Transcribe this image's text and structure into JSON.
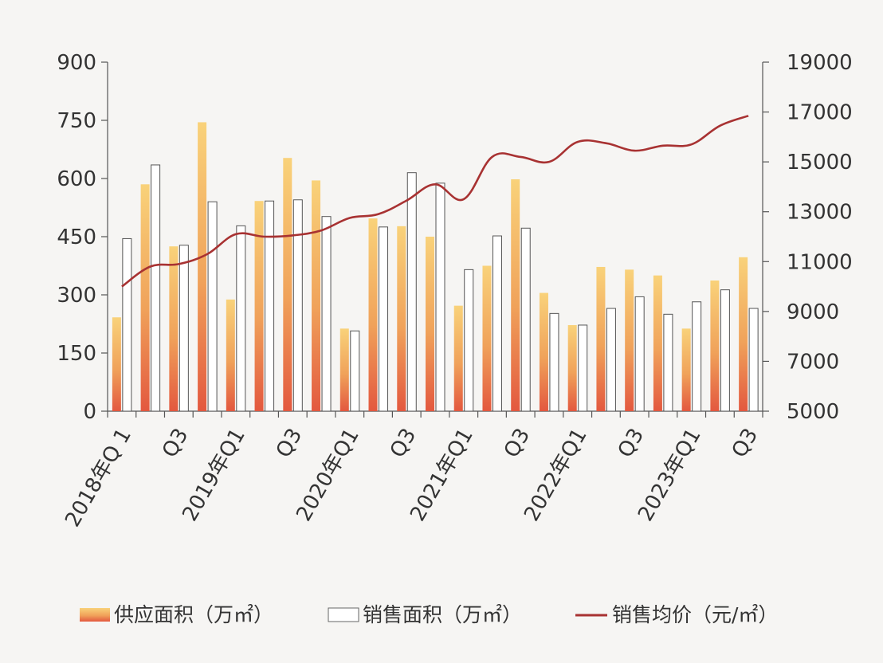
{
  "chart_data": {
    "type": "bar",
    "categories": [
      "2018年Q 1",
      "",
      "Q3",
      "",
      "2019年Q1",
      "",
      "Q3",
      "",
      "2020年Q1",
      "",
      "Q3",
      "",
      "2021年Q1",
      "",
      "Q3",
      "",
      "2022年Q1",
      "",
      "Q3",
      "",
      "2023年Q1",
      "",
      "Q3"
    ],
    "series": [
      {
        "name": "供应面积（万㎡）",
        "type": "bar",
        "axis": "left",
        "color": "#f5c26b",
        "values": [
          242,
          585,
          425,
          745,
          288,
          542,
          653,
          595,
          213,
          497,
          477,
          450,
          272,
          375,
          598,
          305,
          222,
          372,
          365,
          350,
          213,
          337,
          397
        ]
      },
      {
        "name": "销售面积（万㎡）",
        "type": "bar",
        "axis": "left",
        "color": "#ffffff",
        "values": [
          445,
          635,
          428,
          540,
          478,
          542,
          545,
          502,
          207,
          475,
          615,
          588,
          365,
          452,
          472,
          252,
          222,
          265,
          295,
          250,
          282,
          313,
          265
        ]
      },
      {
        "name": "销售均价（元/㎡）",
        "type": "line",
        "axis": "right",
        "color": "#a83232",
        "values": [
          10000,
          10800,
          10900,
          11300,
          12100,
          12000,
          12050,
          12250,
          12750,
          12900,
          13450,
          14100,
          13500,
          15200,
          15200,
          15000,
          15800,
          15750,
          15450,
          15650,
          15700,
          16450,
          16850
        ]
      }
    ],
    "y_left": {
      "min": 0,
      "max": 900,
      "ticks": [
        "0",
        "150",
        "300",
        "450",
        "600",
        "750",
        "900"
      ]
    },
    "y_right": {
      "min": 5000,
      "max": 19000,
      "ticks": [
        "5000",
        "7000",
        "9000",
        "11000",
        "13000",
        "15000",
        "17000",
        "19000"
      ]
    },
    "legend_position": "bottom",
    "grid": false
  }
}
